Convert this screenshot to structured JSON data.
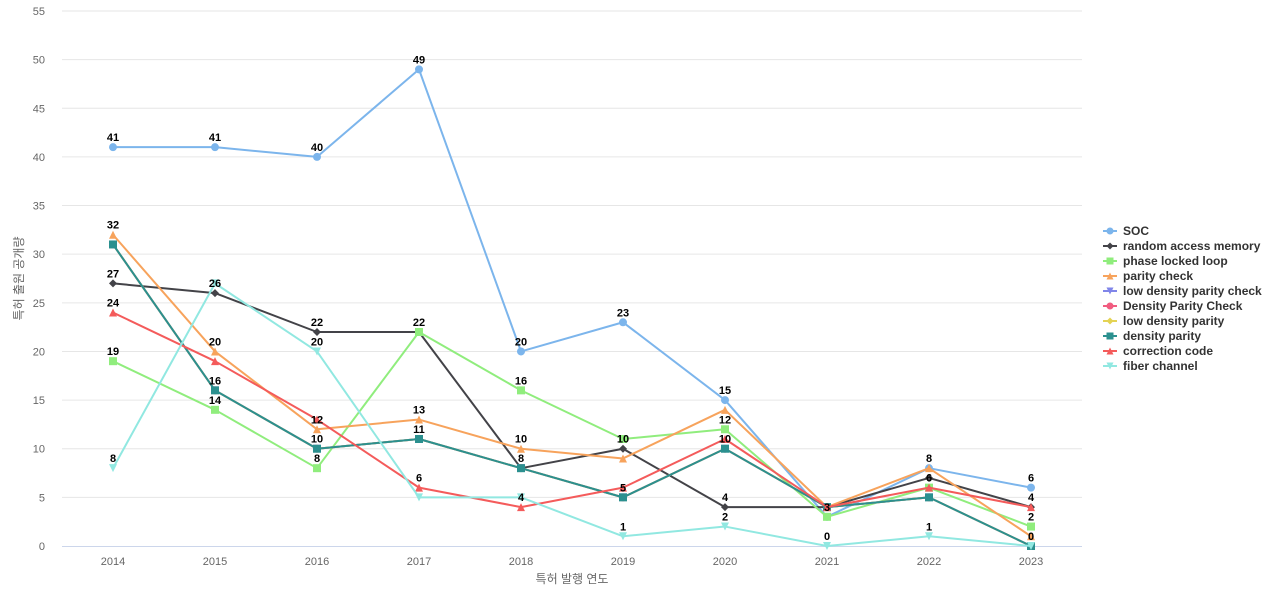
{
  "chart_data": {
    "type": "line",
    "title": "",
    "xlabel": "특허 발행 연도",
    "ylabel": "특허 출원 공개량",
    "x": [
      "2014",
      "2015",
      "2016",
      "2017",
      "2018",
      "2019",
      "2020",
      "2021",
      "2022",
      "2023"
    ],
    "ylim": [
      0,
      55
    ],
    "yticks": [
      0,
      5,
      10,
      15,
      20,
      25,
      30,
      35,
      40,
      45,
      50,
      55
    ],
    "grid": true,
    "legend_position": "right",
    "series": [
      {
        "name": "SOC",
        "color": "#7cb5ec",
        "marker": "circle",
        "values": [
          41,
          41,
          40,
          49,
          20,
          23,
          15,
          3,
          8,
          6
        ]
      },
      {
        "name": "random access memory",
        "color": "#434348",
        "marker": "diamond",
        "values": [
          27,
          26,
          22,
          22,
          8,
          10,
          4,
          4,
          7,
          4
        ]
      },
      {
        "name": "phase locked loop",
        "color": "#90ed7d",
        "marker": "square",
        "values": [
          19,
          14,
          8,
          22,
          16,
          11,
          12,
          3,
          6,
          2
        ]
      },
      {
        "name": "parity check",
        "color": "#f7a35c",
        "marker": "triangle",
        "values": [
          32,
          20,
          12,
          13,
          10,
          9,
          14,
          4,
          8,
          1
        ]
      },
      {
        "name": "low density parity check",
        "color": "#8085e9",
        "marker": "triangle-down",
        "values": [
          31,
          16,
          10,
          11,
          8,
          5,
          10,
          4,
          5,
          0
        ]
      },
      {
        "name": "Density Parity Check",
        "color": "#f15c80",
        "marker": "circle",
        "values": [
          31,
          16,
          10,
          11,
          8,
          5,
          10,
          4,
          5,
          0
        ]
      },
      {
        "name": "low density parity",
        "color": "#e4d354",
        "marker": "diamond",
        "values": [
          31,
          16,
          10,
          11,
          8,
          5,
          10,
          4,
          5,
          0
        ]
      },
      {
        "name": "density parity",
        "color": "#2b908f",
        "marker": "square",
        "values": [
          31,
          16,
          10,
          11,
          8,
          5,
          10,
          4,
          5,
          0
        ]
      },
      {
        "name": "correction code",
        "color": "#f45b5b",
        "marker": "triangle",
        "values": [
          24,
          19,
          13,
          6,
          4,
          6,
          11,
          4,
          6,
          4
        ]
      },
      {
        "name": "fiber channel",
        "color": "#91e8e1",
        "marker": "triangle-down",
        "values": [
          8,
          27,
          20,
          5,
          5,
          1,
          2,
          0,
          1,
          0
        ]
      }
    ],
    "data_labels": [
      {
        "x": "2014",
        "y": 41,
        "text": "41"
      },
      {
        "x": "2015",
        "y": 41,
        "text": "41"
      },
      {
        "x": "2016",
        "y": 40,
        "text": "40"
      },
      {
        "x": "2017",
        "y": 49,
        "text": "49"
      },
      {
        "x": "2018",
        "y": 20,
        "text": "20"
      },
      {
        "x": "2019",
        "y": 23,
        "text": "23"
      },
      {
        "x": "2020",
        "y": 15,
        "text": "15"
      },
      {
        "x": "2022",
        "y": 8,
        "text": "8"
      },
      {
        "x": "2023",
        "y": 6,
        "text": "6"
      },
      {
        "x": "2014",
        "y": 32,
        "text": "32"
      },
      {
        "x": "2014",
        "y": 27,
        "text": "27"
      },
      {
        "x": "2014",
        "y": 24,
        "text": "24"
      },
      {
        "x": "2014",
        "y": 19,
        "text": "19"
      },
      {
        "x": "2014",
        "y": 8,
        "text": "8"
      },
      {
        "x": "2015",
        "y": 26,
        "text": "26"
      },
      {
        "x": "2015",
        "y": 20,
        "text": "20"
      },
      {
        "x": "2015",
        "y": 16,
        "text": "16"
      },
      {
        "x": "2015",
        "y": 14,
        "text": "14"
      },
      {
        "x": "2016",
        "y": 22,
        "text": "22"
      },
      {
        "x": "2016",
        "y": 20,
        "text": "20"
      },
      {
        "x": "2016",
        "y": 12,
        "text": "12"
      },
      {
        "x": "2016",
        "y": 10,
        "text": "10"
      },
      {
        "x": "2016",
        "y": 8,
        "text": "8"
      },
      {
        "x": "2017",
        "y": 22,
        "text": "22"
      },
      {
        "x": "2017",
        "y": 13,
        "text": "13"
      },
      {
        "x": "2017",
        "y": 11,
        "text": "11"
      },
      {
        "x": "2017",
        "y": 6,
        "text": "6"
      },
      {
        "x": "2018",
        "y": 16,
        "text": "16"
      },
      {
        "x": "2018",
        "y": 10,
        "text": "10"
      },
      {
        "x": "2018",
        "y": 8,
        "text": "8"
      },
      {
        "x": "2018",
        "y": 4,
        "text": "4"
      },
      {
        "x": "2019",
        "y": 10,
        "text": "10"
      },
      {
        "x": "2019",
        "y": 5,
        "text": "5"
      },
      {
        "x": "2019",
        "y": 1,
        "text": "1"
      },
      {
        "x": "2020",
        "y": 12,
        "text": "12"
      },
      {
        "x": "2020",
        "y": 10,
        "text": "10"
      },
      {
        "x": "2020",
        "y": 4,
        "text": "4"
      },
      {
        "x": "2020",
        "y": 2,
        "text": "2"
      },
      {
        "x": "2021",
        "y": 3,
        "text": "3"
      },
      {
        "x": "2021",
        "y": 0,
        "text": "0"
      },
      {
        "x": "2022",
        "y": 6,
        "text": "6"
      },
      {
        "x": "2022",
        "y": 1,
        "text": "1"
      },
      {
        "x": "2023",
        "y": 4,
        "text": "4"
      },
      {
        "x": "2023",
        "y": 2,
        "text": "2"
      },
      {
        "x": "2023",
        "y": 0,
        "text": "0"
      }
    ]
  }
}
